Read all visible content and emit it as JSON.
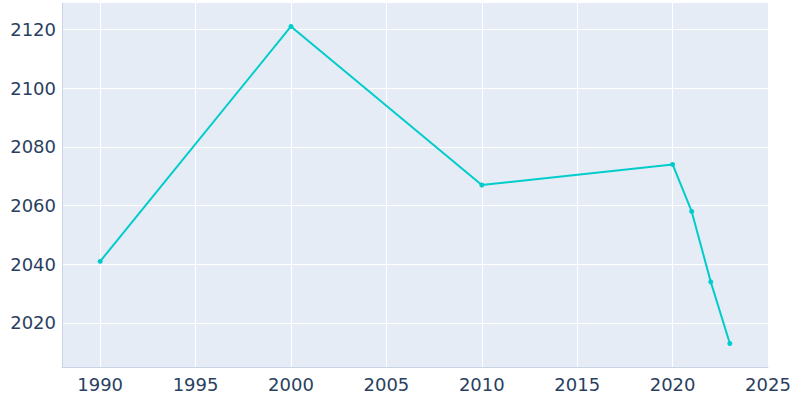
{
  "chart_data": {
    "type": "line",
    "x": [
      1990,
      2000,
      2010,
      2020,
      2021,
      2022,
      2023
    ],
    "values": [
      2041,
      2121,
      2067,
      2074,
      2058,
      2034,
      2013
    ],
    "color": "#00cccc",
    "marker": "circle",
    "xlim": [
      1988,
      2025
    ],
    "xticks": [
      1990,
      1995,
      2000,
      2005,
      2010,
      2015,
      2020,
      2025
    ],
    "ylim": [
      2005,
      2129
    ],
    "yticks": [
      2020,
      2040,
      2060,
      2080,
      2100,
      2120
    ],
    "grid": true
  }
}
